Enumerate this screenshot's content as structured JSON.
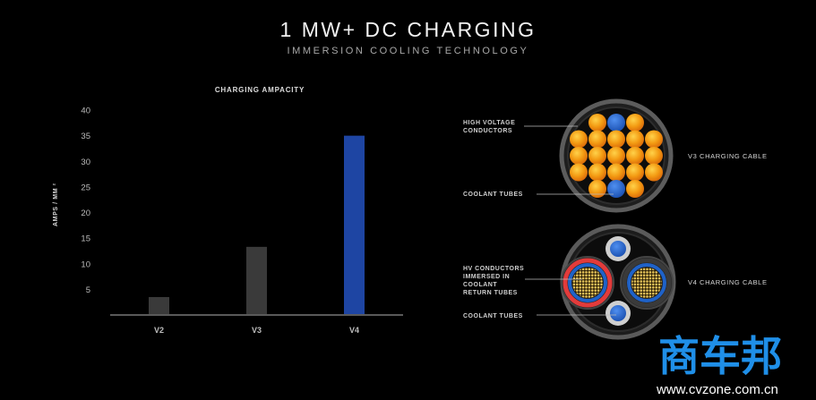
{
  "header": {
    "title": "1 MW+ DC CHARGING",
    "subtitle": "IMMERSION COOLING TECHNOLOGY"
  },
  "chart_data": {
    "type": "bar",
    "title": "CHARGING AMPACITY",
    "xlabel": "",
    "ylabel": "AMPS / MM ²",
    "categories": [
      "V2",
      "V3",
      "V4"
    ],
    "values": [
      3.5,
      13.3,
      35
    ],
    "bar_colors": [
      "#3a3a3a",
      "#3a3a3a",
      "#1e45a3"
    ],
    "ylim": [
      0,
      40
    ],
    "yticks": [
      5,
      10,
      15,
      20,
      25,
      30,
      35,
      40
    ],
    "grid": false,
    "legend": "none"
  },
  "diagram": {
    "v3": {
      "cable_label": "V3 CHARGING CABLE",
      "callouts": [
        "HIGH VOLTAGE",
        "CONDUCTORS",
        "COOLANT TUBES"
      ]
    },
    "v4": {
      "cable_label": "V4 CHARGING CABLE",
      "callouts": [
        "HV CONDUCTORS",
        "IMMERSED IN",
        "COOLANT",
        "RETURN TUBES",
        "COOLANT TUBES"
      ]
    },
    "colors": {
      "conductor": "#f39a12",
      "coolant": "#1f62c8",
      "return_tube": "#e23b3b",
      "jacket": "#5c5c5c"
    }
  },
  "watermark": {
    "brand": "商车邦",
    "url": "www.cvzone.com.cn",
    "icon": "wm-brand-icon"
  }
}
